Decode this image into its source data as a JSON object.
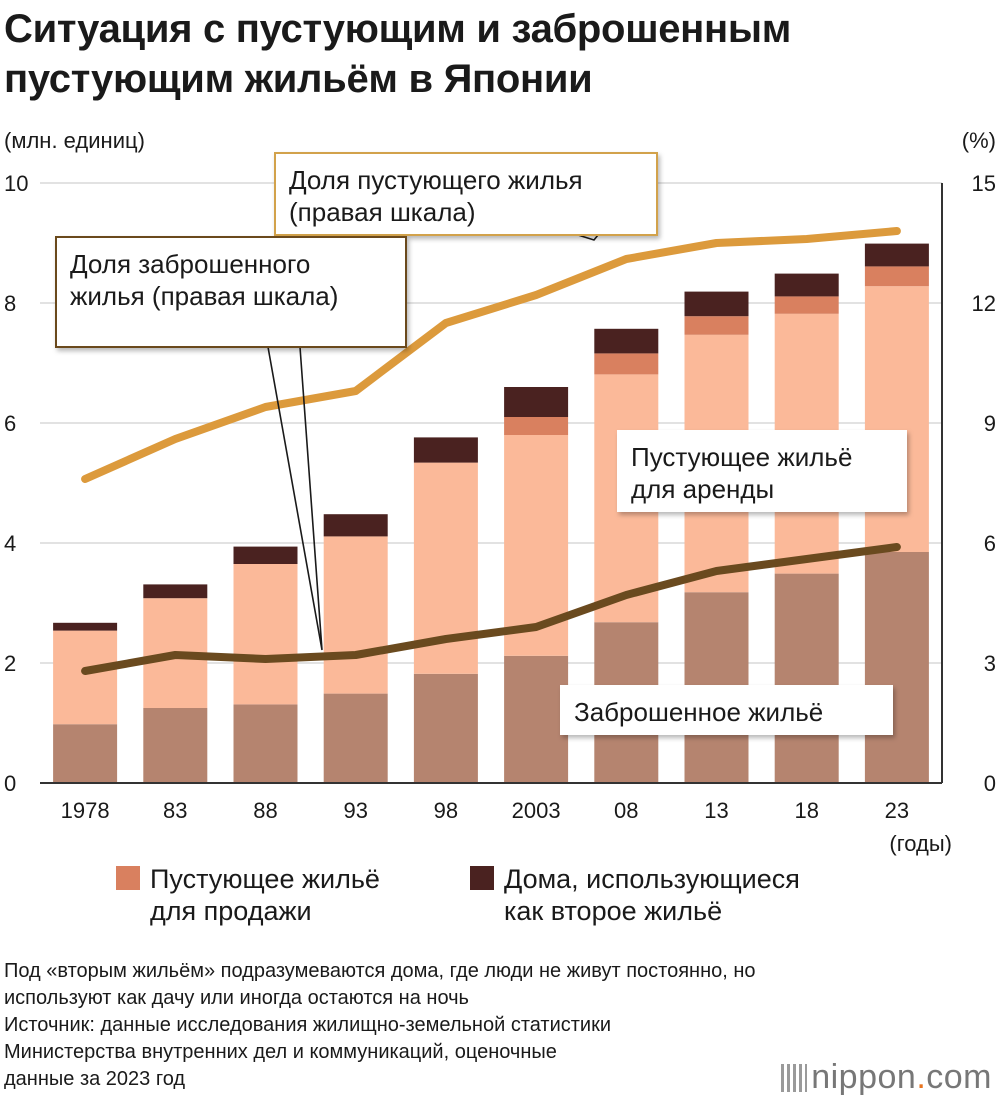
{
  "title_lines": [
    "Ситуация с пустующим и заброшенным",
    "пустующим жильём в Японии"
  ],
  "footnotes": [
    "Под «вторым жильём» подразумеваются дома, где люди не живут постоянно, но",
    "используют как дачу или иногда остаются на ночь",
    "Источник: данные исследования жилищно-земельной статистики",
    "Министерства внутренних дел и коммуникаций, оценочные",
    "данные за 2023 год"
  ],
  "logo": {
    "main": "nippon",
    "dot": ".",
    "suffix": "com"
  },
  "colors": {
    "abandoned": "#b5846f",
    "rental": "#fbb999",
    "sale": "#d9805f",
    "second": "#4a2220",
    "vacancy_line": "#dc9a3c",
    "abandoned_line": "#6a4a1f",
    "grid": "#d8d8d8",
    "callout_border": "#d2a24c",
    "callout_border_dark": "#6a4a1f"
  },
  "chart_data": {
    "type": "bar+line",
    "title": "Ситуация с пустующим и заброшенным пустующим жильём в Японии",
    "categories": [
      "1978",
      "83",
      "88",
      "93",
      "98",
      "2003",
      "08",
      "13",
      "18",
      "23"
    ],
    "x_axis_unit": "(годы)",
    "left_axis": {
      "label": "(млн. единиц)",
      "range": [
        0,
        10
      ],
      "ticks": [
        "0",
        "2",
        "4",
        "6",
        "8",
        "10"
      ]
    },
    "right_axis": {
      "label": "(%)",
      "range": [
        0,
        15
      ],
      "ticks": [
        "0",
        "3",
        "6",
        "9",
        "12",
        "15"
      ]
    },
    "bar_series": [
      {
        "key": "abandoned",
        "name": "Заброшенное жильё",
        "values": [
          0.98,
          1.25,
          1.31,
          1.49,
          1.82,
          2.12,
          2.68,
          3.18,
          3.49,
          3.85
        ]
      },
      {
        "key": "rental",
        "name": "Пустующее жильё для аренды",
        "values": [
          1.56,
          1.83,
          2.34,
          2.62,
          3.52,
          3.68,
          4.13,
          4.29,
          4.33,
          4.43
        ]
      },
      {
        "key": "sale",
        "name": "Пустующее жильё для продажи",
        "values": [
          0,
          0,
          0,
          0,
          0,
          0.3,
          0.35,
          0.31,
          0.29,
          0.33
        ]
      },
      {
        "key": "second",
        "name": "Дома, использующиеся как второе жильё",
        "values": [
          0.13,
          0.23,
          0.29,
          0.37,
          0.42,
          0.5,
          0.41,
          0.41,
          0.38,
          0.38
        ]
      }
    ],
    "line_series": [
      {
        "key": "vacancy_rate",
        "name": "Доля пустующего жилья (правая шкала)",
        "axis": "right",
        "values": [
          7.6,
          8.6,
          9.4,
          9.8,
          11.5,
          12.2,
          13.1,
          13.5,
          13.6,
          13.8
        ]
      },
      {
        "key": "abandoned_rate",
        "name": "Доля заброшенного жилья (правая шкала)",
        "axis": "right",
        "values": [
          2.8,
          3.2,
          3.1,
          3.2,
          3.6,
          3.9,
          4.7,
          5.3,
          5.6,
          5.9
        ]
      }
    ],
    "legend": [
      {
        "key": "sale",
        "label_lines": [
          "Пустующее жильё",
          "для продажи"
        ]
      },
      {
        "key": "second",
        "label_lines": [
          "Дома, использующиеся",
          "как второе жильё"
        ]
      }
    ],
    "callouts": {
      "vacancy_rate": [
        "Доля пустующего жилья",
        "(правая шкала)"
      ],
      "abandoned_rate": [
        "Доля заброшенного",
        "жилья (правая шкала)"
      ],
      "rental": [
        "Пустующее жильё",
        "для аренды"
      ],
      "abandoned": [
        "Заброшенное жильё"
      ]
    }
  }
}
